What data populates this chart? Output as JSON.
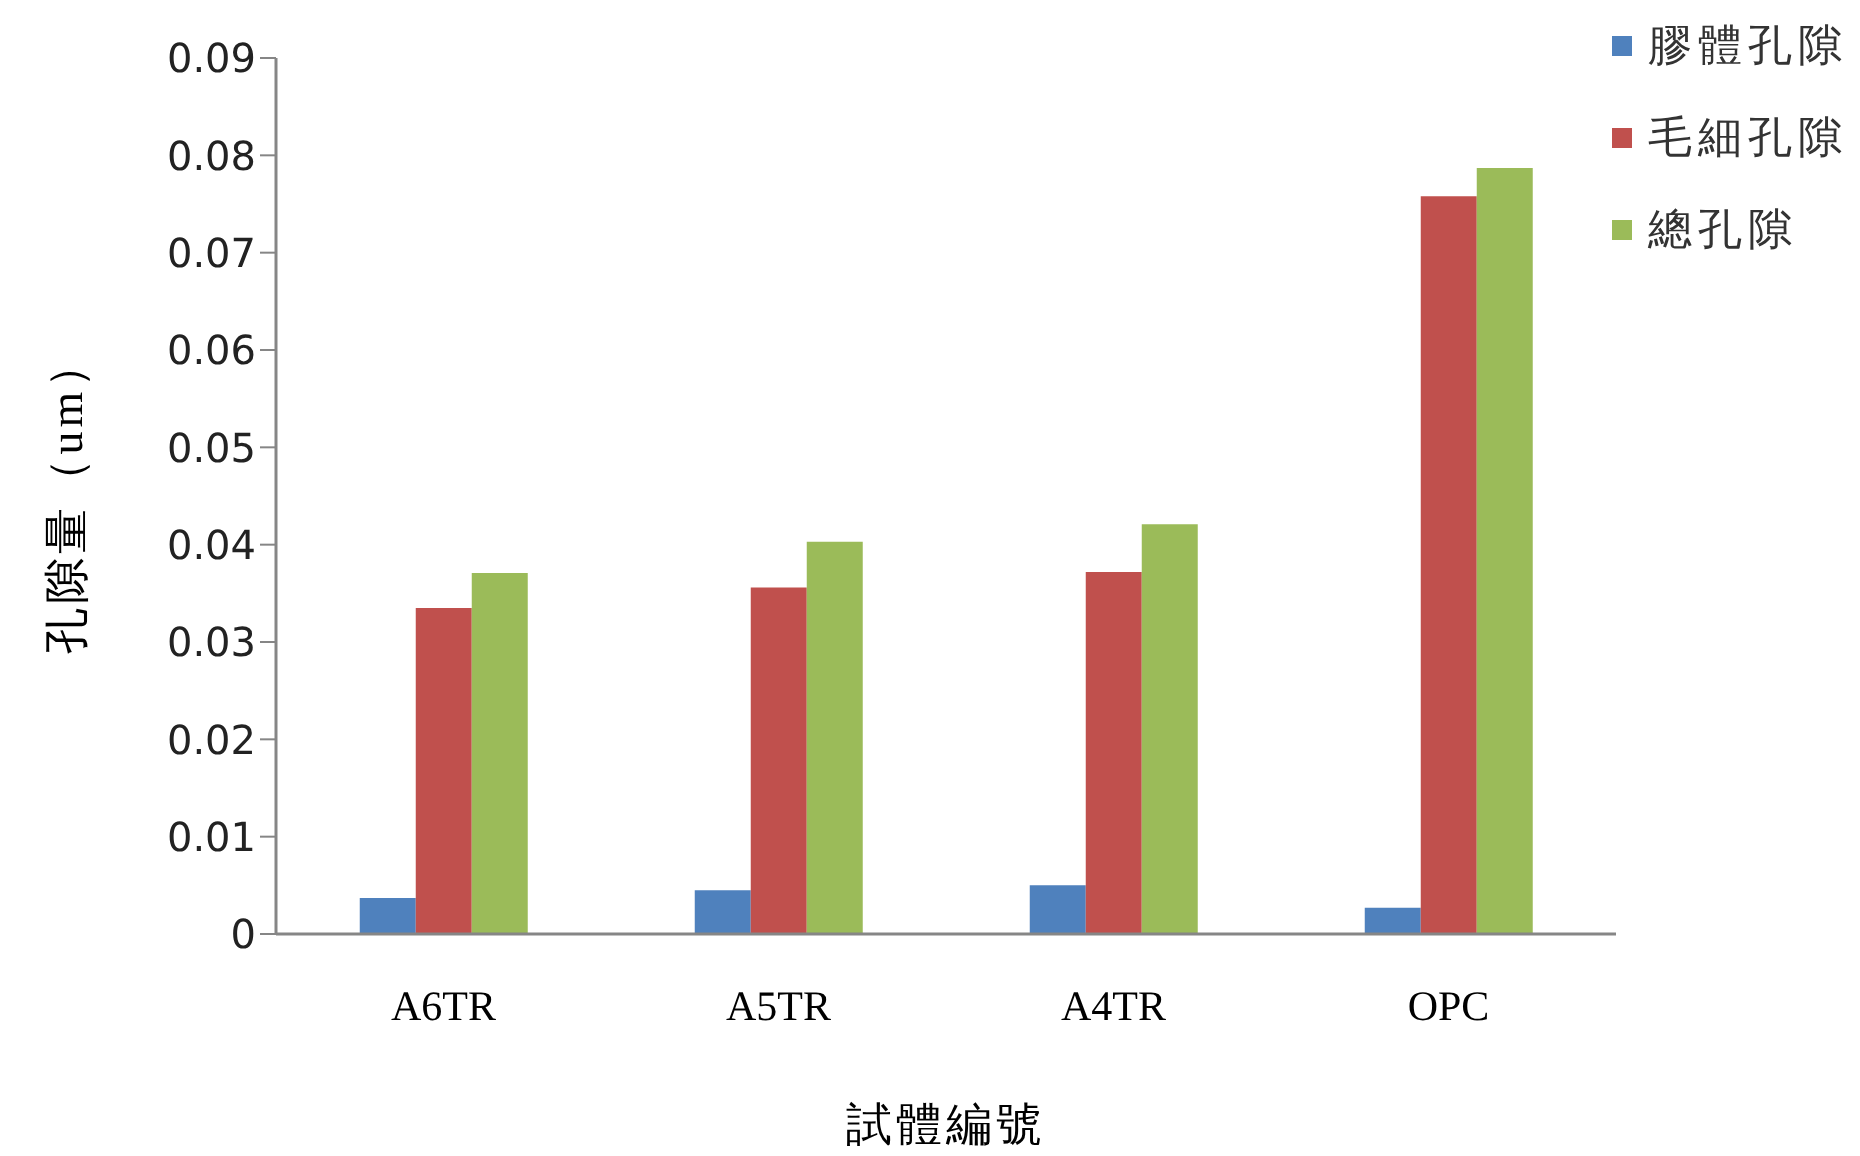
{
  "chart_data": {
    "type": "bar",
    "xlabel": "試體編號",
    "ylabel": "孔隙量（um）",
    "categories": [
      "A6TR",
      "A5TR",
      "A4TR",
      "OPC"
    ],
    "series": [
      {
        "name": "膠體孔隙",
        "color": "#4f81bd",
        "values": [
          0.0037,
          0.0045,
          0.005,
          0.0027
        ]
      },
      {
        "name": "毛細孔隙",
        "color": "#c0504d",
        "values": [
          0.0335,
          0.0356,
          0.0372,
          0.0758
        ]
      },
      {
        "name": "總孔隙",
        "color": "#9bbb59",
        "values": [
          0.0371,
          0.0403,
          0.0421,
          0.0787
        ]
      }
    ],
    "ylim": [
      0,
      0.09
    ],
    "yticks": [
      0,
      0.01,
      0.02,
      0.03,
      0.04,
      0.05,
      0.06,
      0.07,
      0.08,
      0.09
    ],
    "legend": "top right"
  }
}
